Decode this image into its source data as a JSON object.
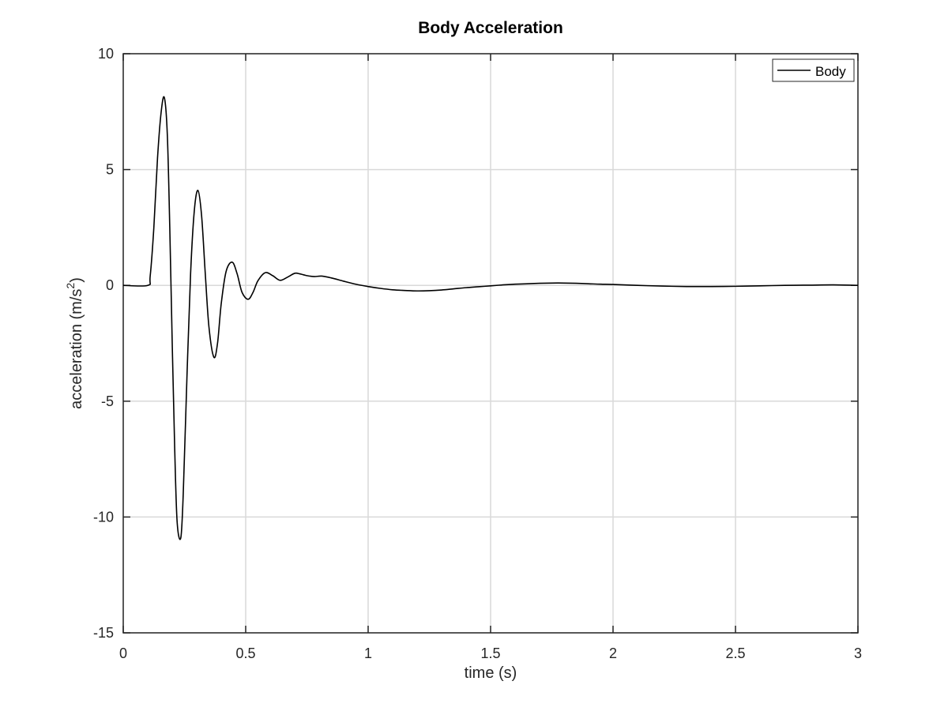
{
  "chart_data": {
    "type": "line",
    "title": "Body Acceleration",
    "xlabel": "time (s)",
    "ylabel_main": "acceleration (m/s",
    "ylabel_sup": "2",
    "ylabel_close": ")",
    "xlim": [
      0,
      3
    ],
    "ylim": [
      -15,
      10
    ],
    "xticks": [
      0,
      0.5,
      1,
      1.5,
      2,
      2.5,
      3
    ],
    "xtick_labels": [
      "0",
      "0.5",
      "1",
      "1.5",
      "2",
      "2.5",
      "3"
    ],
    "yticks": [
      -15,
      -10,
      -5,
      0,
      5,
      10
    ],
    "ytick_labels": [
      "-15",
      "-10",
      "-5",
      "0",
      "5",
      "10"
    ],
    "grid": true,
    "legend_position": "top-right",
    "colors": {
      "line": "#000000",
      "grid": "#d9d9d9",
      "axes": "#262626"
    },
    "series": [
      {
        "name": "Body",
        "x": [
          0,
          0.1,
          0.11,
          0.125,
          0.14,
          0.155,
          0.168,
          0.18,
          0.19,
          0.2,
          0.21,
          0.22,
          0.235,
          0.245,
          0.26,
          0.275,
          0.29,
          0.305,
          0.32,
          0.335,
          0.35,
          0.37,
          0.385,
          0.4,
          0.42,
          0.445,
          0.465,
          0.485,
          0.51,
          0.53,
          0.55,
          0.58,
          0.61,
          0.64,
          0.67,
          0.7,
          0.72,
          0.75,
          0.78,
          0.81,
          0.85,
          0.9,
          0.95,
          1.0,
          1.05,
          1.1,
          1.15,
          1.2,
          1.25,
          1.3,
          1.35,
          1.4,
          1.45,
          1.5,
          1.55,
          1.6,
          1.65,
          1.7,
          1.75,
          1.8,
          1.85,
          1.9,
          1.95,
          2.0,
          2.1,
          2.2,
          2.3,
          2.4,
          2.5,
          2.6,
          2.7,
          2.8,
          2.9,
          3.0
        ],
        "y": [
          0,
          0,
          0.4,
          2.5,
          5.5,
          7.5,
          8.1,
          6.5,
          2.5,
          -2.5,
          -7.0,
          -10.2,
          -10.9,
          -9.0,
          -4.0,
          0.5,
          3.2,
          4.1,
          3.0,
          0.5,
          -1.8,
          -3.1,
          -2.5,
          -0.8,
          0.6,
          1.0,
          0.5,
          -0.3,
          -0.6,
          -0.3,
          0.2,
          0.55,
          0.42,
          0.22,
          0.35,
          0.52,
          0.5,
          0.42,
          0.38,
          0.4,
          0.32,
          0.18,
          0.05,
          -0.05,
          -0.13,
          -0.19,
          -0.22,
          -0.24,
          -0.23,
          -0.2,
          -0.15,
          -0.1,
          -0.06,
          -0.02,
          0.02,
          0.05,
          0.07,
          0.09,
          0.1,
          0.1,
          0.09,
          0.07,
          0.05,
          0.04,
          0.0,
          -0.03,
          -0.05,
          -0.05,
          -0.04,
          -0.02,
          0.0,
          0.01,
          0.02,
          0.0
        ]
      }
    ]
  }
}
